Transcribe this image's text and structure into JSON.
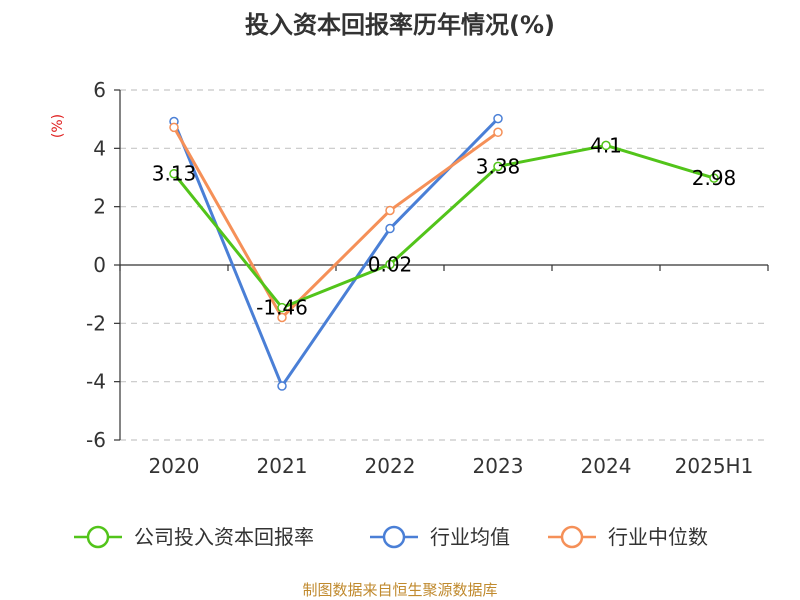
{
  "chart_data": {
    "type": "line",
    "title": "投入资本回报率历年情况(%)",
    "ylabel": "(%)",
    "xlabel": "",
    "categories": [
      "2020",
      "2021",
      "2022",
      "2023",
      "2024",
      "2025H1"
    ],
    "ylim": [
      -6,
      6
    ],
    "yticks": [
      6,
      4,
      2,
      0,
      -2,
      -4,
      -6
    ],
    "grid": true,
    "legend_position": "bottom",
    "series": [
      {
        "name": "公司投入资本回报率",
        "color": "#52c41a",
        "values": [
          3.13,
          -1.46,
          0.02,
          3.38,
          4.1,
          2.98
        ],
        "labels": [
          "3.13",
          "-1.46",
          "0.02",
          "3.38",
          "4.1",
          "2.98"
        ]
      },
      {
        "name": "行业均值",
        "color": "#4a7fd6",
        "values": [
          4.92,
          -4.15,
          1.25,
          5.02,
          null,
          null
        ]
      },
      {
        "name": "行业中位数",
        "color": "#f59058",
        "values": [
          4.72,
          -1.8,
          1.87,
          4.55,
          null,
          null
        ]
      }
    ]
  },
  "source": "制图数据来自恒生聚源数据库"
}
